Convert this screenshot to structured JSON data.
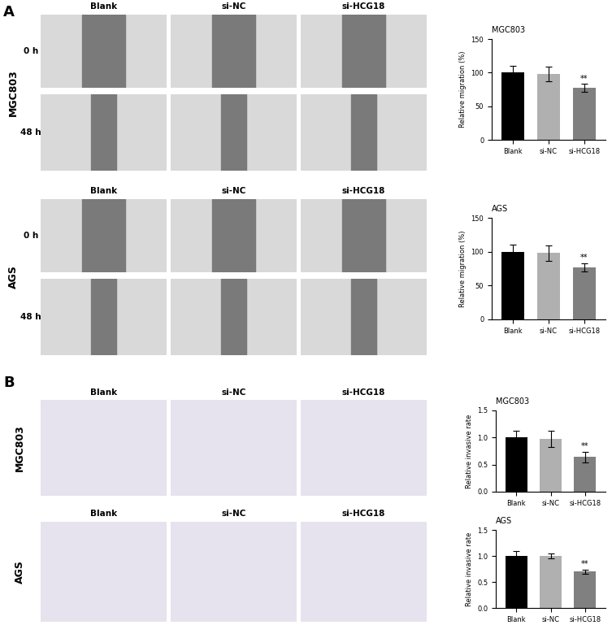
{
  "chart_data": [
    {
      "type": "bar",
      "title": "MGC803",
      "ylabel": "Relative migration (%)",
      "categories": [
        "Blank",
        "si-NC",
        "si-HCG18"
      ],
      "values": [
        100,
        98,
        77
      ],
      "errors": [
        10,
        11,
        6
      ],
      "colors": [
        "#000000",
        "#b0b0b0",
        "#808080"
      ],
      "ylim": [
        0,
        150
      ],
      "yticks": [
        0,
        50,
        100,
        150
      ],
      "annotations": [
        {
          "category": "si-HCG18",
          "text": "**"
        }
      ]
    },
    {
      "type": "bar",
      "title": "AGS",
      "ylabel": "Relative migration (%)",
      "categories": [
        "Blank",
        "si-NC",
        "si-HCG18"
      ],
      "values": [
        100,
        98,
        77
      ],
      "errors": [
        10,
        11,
        6
      ],
      "colors": [
        "#000000",
        "#b0b0b0",
        "#808080"
      ],
      "ylim": [
        0,
        150
      ],
      "yticks": [
        0,
        50,
        100,
        150
      ],
      "annotations": [
        {
          "category": "si-HCG18",
          "text": "**"
        }
      ]
    },
    {
      "type": "bar",
      "title": "MGC803",
      "ylabel": "Relative invasive rate",
      "categories": [
        "Blank",
        "si-NC",
        "si-HCG18"
      ],
      "values": [
        1.0,
        0.98,
        0.64
      ],
      "errors": [
        0.12,
        0.15,
        0.1
      ],
      "colors": [
        "#000000",
        "#b0b0b0",
        "#808080"
      ],
      "ylim": [
        0,
        1.5
      ],
      "yticks": [
        {
          "value": 0,
          "label": "0.0"
        },
        0.5,
        {
          "value": 1,
          "label": "1.0"
        },
        1.5
      ],
      "annotations": [
        {
          "category": "si-HCG18",
          "text": "**"
        }
      ]
    },
    {
      "type": "bar",
      "title": "AGS",
      "ylabel": "Relative invasive rate",
      "categories": [
        "Blank",
        "si-NC",
        "si-HCG18"
      ],
      "values": [
        1.0,
        1.0,
        0.7
      ],
      "errors": [
        0.1,
        0.05,
        0.04
      ],
      "colors": [
        "#000000",
        "#b0b0b0",
        "#808080"
      ],
      "ylim": [
        0,
        1.5
      ],
      "yticks": [
        {
          "value": 0,
          "label": "0.0"
        },
        0.5,
        {
          "value": 1,
          "label": "1.0"
        },
        1.5
      ],
      "annotations": [
        {
          "category": "si-HCG18",
          "text": "**"
        }
      ]
    }
  ],
  "figure": {
    "panels": [
      {
        "label": "A",
        "groups": [
          {
            "row_label": "MGC803",
            "columns": [
              "Blank",
              "si-NC",
              "si-HCG18"
            ],
            "times": [
              "0 h",
              "48 h"
            ]
          },
          {
            "row_label": "AGS",
            "columns": [
              "Blank",
              "si-NC",
              "si-HCG18"
            ],
            "times": [
              "0 h",
              "48 h"
            ]
          }
        ]
      },
      {
        "label": "B",
        "groups": [
          {
            "row_label": "MGC803",
            "columns": [
              "Blank",
              "si-NC",
              "si-HCG18"
            ]
          },
          {
            "row_label": "AGS",
            "columns": [
              "Blank",
              "si-NC",
              "si-HCG18"
            ]
          }
        ]
      }
    ]
  }
}
